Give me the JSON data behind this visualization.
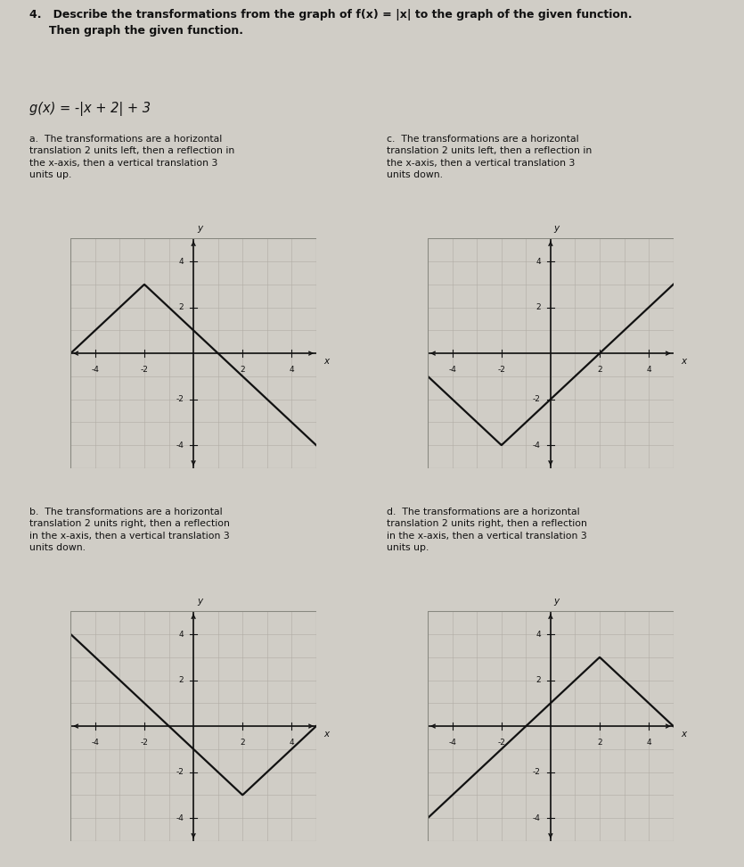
{
  "title_bold": "4.   Describe the transformations from the graph of f(x) = |x| to the graph of the given function.\n     Then graph the given function.",
  "function_label": "g(x) = -|x + 2| + 3",
  "bg_color": "#d0cdc6",
  "grid_color": "#b0aca4",
  "axis_color": "#111111",
  "line_color": "#111111",
  "white_grid": "#e8e6e0",
  "options": [
    {
      "label": "a.",
      "text": "The transformations are a horizontal\ntranslation 2 units left, then a reflection in\nthe x-axis, then a vertical translation 3\nunits up.",
      "peak_x": -2,
      "peak_y": 3,
      "sign": -1,
      "xlim": [
        -5,
        5
      ],
      "ylim": [
        -5,
        5
      ],
      "x_ticks": [
        -4,
        -2,
        2,
        4
      ],
      "y_ticks": [
        -4,
        -2,
        2,
        4
      ]
    },
    {
      "label": "c.",
      "text": "The transformations are a horizontal\ntranslation 2 units left, then a reflection in\nthe x-axis, then a vertical translation 3\nunits down.",
      "peak_x": -2,
      "peak_y": -4,
      "sign": 1,
      "xlim": [
        -5,
        5
      ],
      "ylim": [
        -5,
        5
      ],
      "x_ticks": [
        -4,
        -2,
        2,
        4
      ],
      "y_ticks": [
        -4,
        -2,
        2,
        4
      ]
    },
    {
      "label": "b.",
      "text": "The transformations are a horizontal\ntranslation 2 units right, then a reflection\nin the x-axis, then a vertical translation 3\nunits down.",
      "peak_x": 2,
      "peak_y": -3,
      "sign": 1,
      "xlim": [
        -5,
        5
      ],
      "ylim": [
        -5,
        5
      ],
      "x_ticks": [
        -4,
        -2,
        2,
        4
      ],
      "y_ticks": [
        -4,
        -2,
        2,
        4
      ]
    },
    {
      "label": "d.",
      "text": "The transformations are a horizontal\ntranslation 2 units right, then a reflection\nin the x-axis, then a vertical translation 3\nunits up.",
      "peak_x": 2,
      "peak_y": 3,
      "sign": -1,
      "xlim": [
        -5,
        5
      ],
      "ylim": [
        -5,
        5
      ],
      "x_ticks": [
        -4,
        -2,
        2,
        4
      ],
      "y_ticks": [
        -4,
        -2,
        2,
        4
      ]
    }
  ],
  "text_color": "#111111",
  "tick_fontsize": 6.5,
  "axis_label_fontsize": 7.5,
  "option_text_fontsize": 7.8,
  "label_fontsize": 8.0
}
